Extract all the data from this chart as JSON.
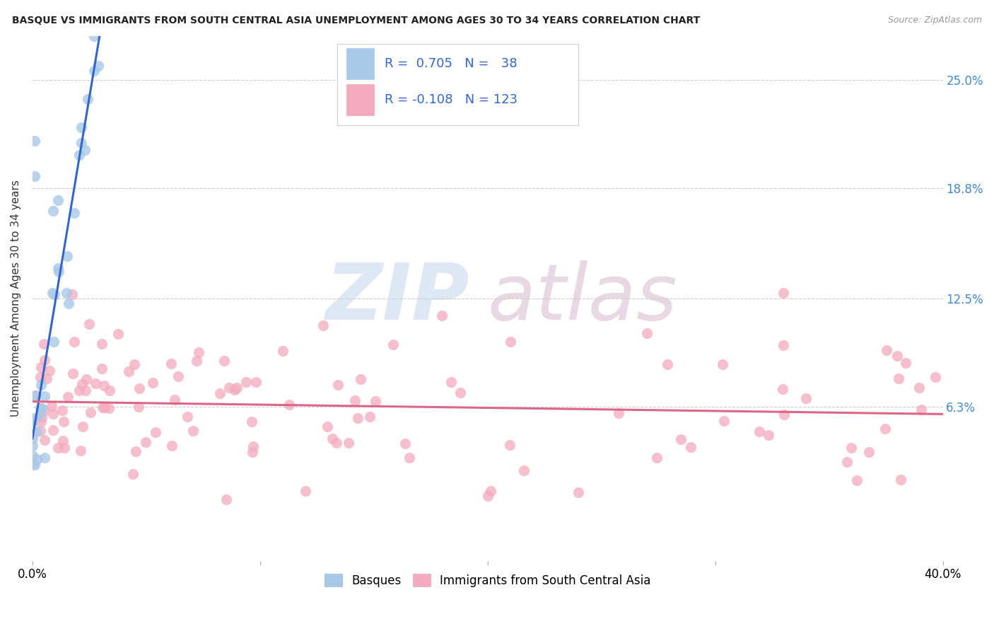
{
  "title": "BASQUE VS IMMIGRANTS FROM SOUTH CENTRAL ASIA UNEMPLOYMENT AMONG AGES 30 TO 34 YEARS CORRELATION CHART",
  "source": "Source: ZipAtlas.com",
  "ylabel": "Unemployment Among Ages 30 to 34 years",
  "yticks_labels": [
    "25.0%",
    "18.8%",
    "12.5%",
    "6.3%"
  ],
  "ytick_values": [
    0.25,
    0.188,
    0.125,
    0.063
  ],
  "xlim": [
    0.0,
    0.4
  ],
  "ylim": [
    -0.025,
    0.275
  ],
  "basque_R": 0.705,
  "basque_N": 38,
  "immigrant_R": -0.108,
  "immigrant_N": 123,
  "basque_color": "#a8c8e8",
  "immigrant_color": "#f4aabe",
  "basque_line_color": "#3366cc",
  "immigrant_line_color": "#dd6688",
  "legend_label_1": "Basques",
  "legend_label_2": "Immigrants from South Central Asia",
  "background_color": "#ffffff",
  "grid_color": "#cccccc",
  "basque_slope": 7.8,
  "basque_intercept": 0.045,
  "immigrant_slope": -0.018,
  "immigrant_intercept": 0.066
}
